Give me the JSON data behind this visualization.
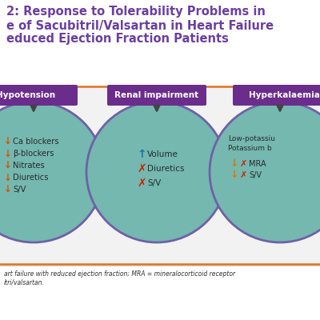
{
  "title_lines": [
    "2: Response to Tolerability Problems in",
    "e of Sacubitril/Valsartan in Heart Failure",
    "educed Ejection Fraction Patients"
  ],
  "title_color": "#6b3fa0",
  "bg_color": "#ffffff",
  "circle_color": "#74b8b0",
  "circle_edge_color": "#7060a8",
  "box_color": "#6b2d8b",
  "box_text_color": "#ffffff",
  "boxes": [
    "Hypotension",
    "Renal impairment",
    "Hyperkalaemia"
  ],
  "arrow_color": "#444444",
  "circle1_lines": [
    {
      "symbol": "↓",
      "symbol_color": "#d45500",
      "text": "Ca blockers"
    },
    {
      "symbol": "↓",
      "symbol_color": "#d45500",
      "text": "β-blockers"
    },
    {
      "symbol": "↓",
      "symbol_color": "#d45500",
      "text": "Nitrates"
    },
    {
      "symbol": "↓",
      "symbol_color": "#d45500",
      "text": "Diuretics"
    },
    {
      "symbol": "↓",
      "symbol_color": "#d45500",
      "text": "S/V"
    }
  ],
  "circle2_lines": [
    {
      "symbol": "↑",
      "symbol_color": "#1a70b0",
      "text": "Volume"
    },
    {
      "symbol": "✗",
      "symbol_color": "#cc2200",
      "text": "Diuretics"
    },
    {
      "symbol": "✗",
      "symbol_color": "#cc2200",
      "text": "S/V"
    }
  ],
  "circle3_top": [
    "Low-potassiu",
    "Potassium b"
  ],
  "circle3_lines": [
    {
      "symbol": "↓",
      "symbol_color": "#e07800",
      "cross_color": "#cc2200",
      "text": "MRA"
    },
    {
      "symbol": "↓",
      "symbol_color": "#e07800",
      "cross_color": "#cc2200",
      "text": "S/V"
    }
  ],
  "footnote": "art failure with reduced ejection fraction; MRA = mineralocorticoid receptor\nitri/valsartan.",
  "footnote_color": "#333333",
  "text_color": "#2a2a2a",
  "panel_color": "#f2f2f2",
  "orange_line": "#e07020"
}
